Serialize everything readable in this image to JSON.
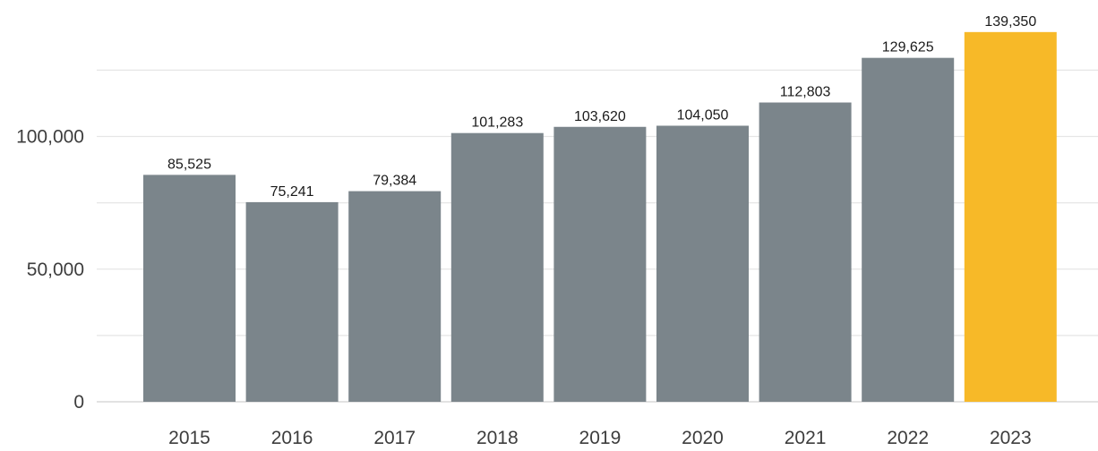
{
  "chart_data": {
    "type": "bar",
    "categories": [
      "2015",
      "2016",
      "2017",
      "2018",
      "2019",
      "2020",
      "2021",
      "2022",
      "2023"
    ],
    "values": [
      85525,
      75241,
      79384,
      101283,
      103620,
      104050,
      112803,
      129625,
      139350
    ],
    "data_labels": [
      "85,525",
      "75,241",
      "79,384",
      "101,283",
      "103,620",
      "104,050",
      "112,803",
      "129,625",
      "139,350"
    ],
    "y_ticks": [
      0,
      50000,
      100000
    ],
    "y_tick_labels": [
      "0",
      "50,000",
      "100,000"
    ],
    "minor_gridlines": [
      25000,
      75000,
      125000
    ],
    "ylim": [
      0,
      150000
    ],
    "grid": true,
    "title": "",
    "xlabel": "",
    "ylabel": "",
    "colors": {
      "bar_default": "#7b858b",
      "bar_highlight": "#f7b928",
      "gridline": "#e6e6e6",
      "baseline": "#d9d9d9"
    },
    "highlight_index": 8
  }
}
